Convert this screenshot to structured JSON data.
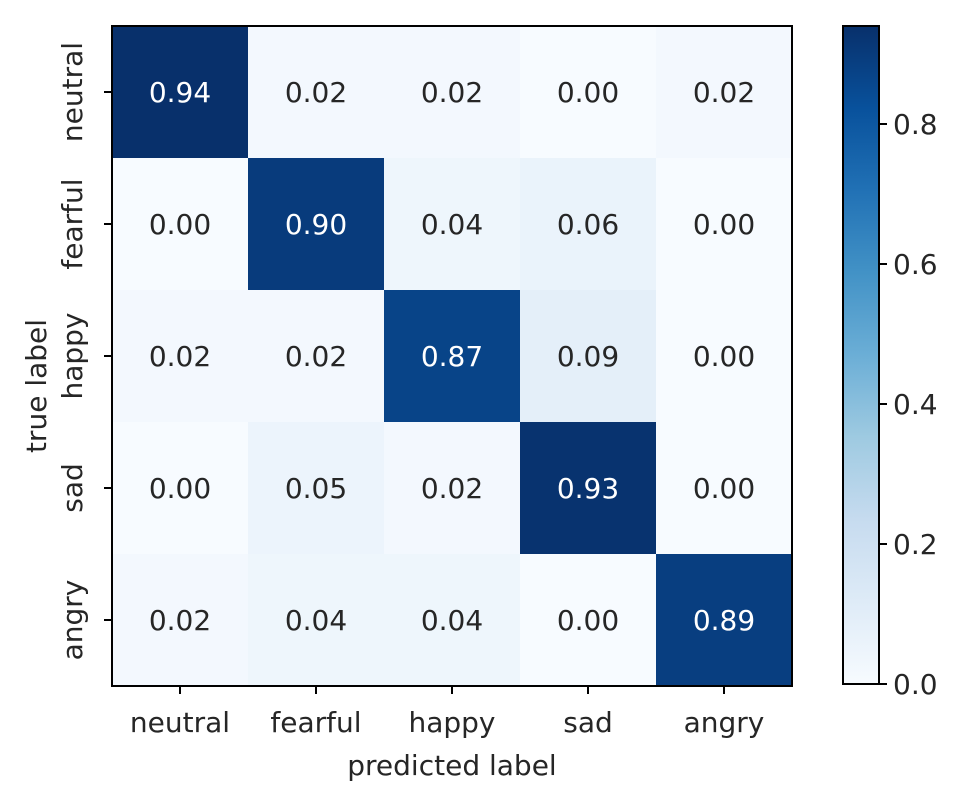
{
  "chart_data": {
    "type": "heatmap",
    "title": "",
    "xlabel": "predicted label",
    "ylabel": "true label",
    "x_categories": [
      "neutral",
      "fearful",
      "happy",
      "sad",
      "angry"
    ],
    "y_categories": [
      "neutral",
      "fearful",
      "happy",
      "sad",
      "angry"
    ],
    "values": [
      [
        0.94,
        0.02,
        0.02,
        0.0,
        0.02
      ],
      [
        0.0,
        0.9,
        0.04,
        0.06,
        0.0
      ],
      [
        0.02,
        0.02,
        0.87,
        0.09,
        0.0
      ],
      [
        0.0,
        0.05,
        0.02,
        0.93,
        0.0
      ],
      [
        0.02,
        0.04,
        0.04,
        0.0,
        0.89
      ]
    ],
    "value_labels": [
      [
        "0.94",
        "0.02",
        "0.02",
        "0.00",
        "0.02"
      ],
      [
        "0.00",
        "0.90",
        "0.04",
        "0.06",
        "0.00"
      ],
      [
        "0.02",
        "0.02",
        "0.87",
        "0.09",
        "0.00"
      ],
      [
        "0.00",
        "0.05",
        "0.02",
        "0.93",
        "0.00"
      ],
      [
        "0.02",
        "0.04",
        "0.04",
        "0.00",
        "0.89"
      ]
    ],
    "colormap": "Blues",
    "colorbar": {
      "range": [
        0.0,
        0.94
      ],
      "ticks": [
        0.0,
        0.2,
        0.4,
        0.6,
        0.8
      ],
      "tick_labels": [
        "0.0",
        "0.2",
        "0.4",
        "0.6",
        "0.8"
      ]
    },
    "grid": false,
    "text_color_dark": "#262626",
    "text_color_light": "#ffffff"
  }
}
